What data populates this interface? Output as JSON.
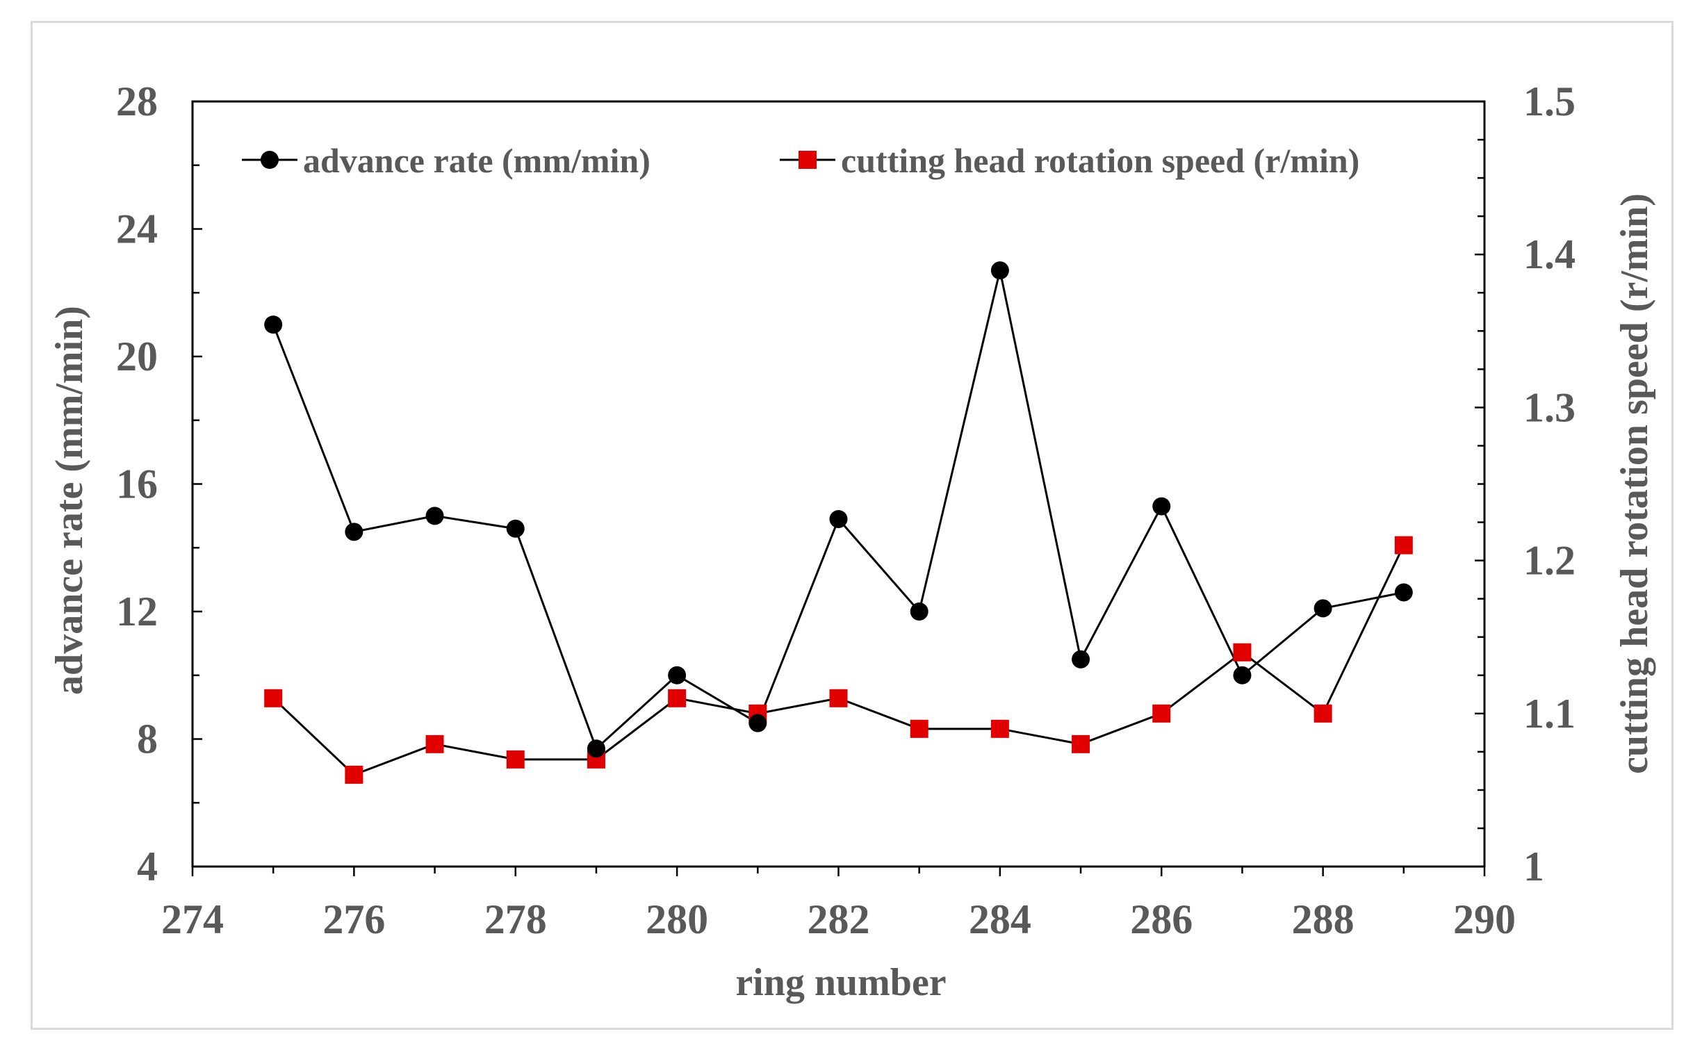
{
  "chart_data": {
    "type": "line",
    "title": "",
    "xlabel": "ring number",
    "ylabel": "advance rate (mm/min)",
    "y2label": "cutting head rotation speed (r/min)",
    "xlim": [
      274,
      290
    ],
    "ylim": [
      4,
      28
    ],
    "y2lim": [
      1.0,
      1.5
    ],
    "x_ticks": [
      "274",
      "276",
      "278",
      "280",
      "282",
      "284",
      "286",
      "288",
      "290"
    ],
    "y_ticks": [
      "4",
      "8",
      "12",
      "16",
      "20",
      "24",
      "28"
    ],
    "y2_ticks": [
      "1",
      "1.1",
      "1.2",
      "1.3",
      "1.4",
      "1.5"
    ],
    "grid": false,
    "legend_position": "top",
    "x": [
      275,
      276,
      277,
      278,
      279,
      280,
      281,
      282,
      283,
      284,
      285,
      286,
      287,
      288,
      289
    ],
    "series": [
      {
        "name": "advance rate (mm/min)",
        "axis": "left",
        "marker": "circle",
        "color": "#000000",
        "values": [
          21.0,
          14.5,
          15.0,
          14.6,
          7.7,
          10.0,
          8.5,
          14.9,
          12.0,
          22.7,
          10.5,
          15.3,
          10.0,
          12.1,
          12.6
        ]
      },
      {
        "name": "cutting head rotation speed (r/min)",
        "axis": "right",
        "marker": "square",
        "color": "#e00000",
        "line_color": "#000000",
        "values": [
          1.11,
          1.06,
          1.08,
          1.07,
          1.07,
          1.11,
          1.1,
          1.11,
          1.09,
          1.09,
          1.08,
          1.1,
          1.14,
          1.1,
          1.21
        ]
      }
    ]
  }
}
